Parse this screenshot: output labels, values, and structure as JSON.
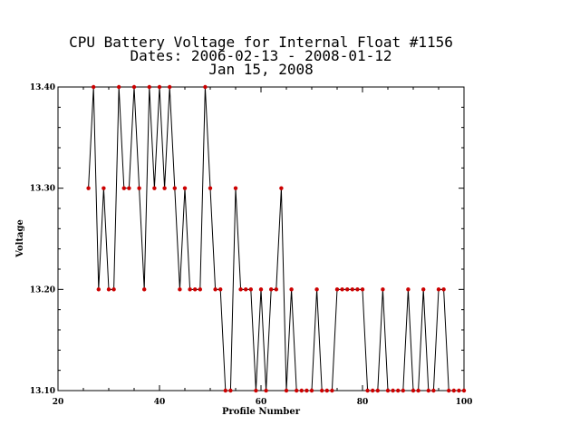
{
  "chart_data": {
    "type": "line",
    "title_lines": [
      "CPU Battery Voltage for Internal Float #1156",
      "Dates:  2006-02-13 -  2008-01-12",
      "Jan 15, 2008"
    ],
    "xlabel": "Profile Number",
    "ylabel": "Voltage",
    "xlim": [
      20,
      100
    ],
    "ylim": [
      13.1,
      13.4
    ],
    "x_ticks": [
      20,
      40,
      60,
      80,
      100
    ],
    "x_tick_labels": [
      "20",
      "40",
      "60",
      "80",
      "100"
    ],
    "y_ticks": [
      13.1,
      13.2,
      13.3,
      13.4
    ],
    "y_tick_labels": [
      "13.10",
      "13.20",
      "13.30",
      "13.40"
    ],
    "grid": false,
    "series": [
      {
        "line_color": "#000000",
        "marker_color": "#cc0000",
        "x": [
          26,
          27,
          28,
          29,
          30,
          31,
          32,
          33,
          34,
          35,
          36,
          37,
          38,
          39,
          40,
          41,
          42,
          43,
          44,
          45,
          46,
          47,
          48,
          49,
          50,
          51,
          52,
          53,
          54,
          55,
          56,
          57,
          58,
          59,
          60,
          61,
          62,
          63,
          64,
          65,
          66,
          67,
          68,
          69,
          70,
          71,
          72,
          73,
          74,
          75,
          76,
          77,
          78,
          79,
          80,
          81,
          82,
          83,
          84,
          85,
          86,
          87,
          88,
          89,
          90,
          91,
          92,
          93,
          94,
          95,
          96,
          97,
          98,
          99,
          100
        ],
        "values": [
          13.3,
          13.4,
          13.2,
          13.3,
          13.2,
          13.2,
          13.4,
          13.3,
          13.3,
          13.4,
          13.3,
          13.2,
          13.4,
          13.3,
          13.4,
          13.3,
          13.4,
          13.3,
          13.2,
          13.3,
          13.2,
          13.2,
          13.2,
          13.4,
          13.3,
          13.2,
          13.2,
          13.1,
          13.1,
          13.3,
          13.2,
          13.2,
          13.2,
          13.1,
          13.2,
          13.1,
          13.2,
          13.2,
          13.3,
          13.1,
          13.2,
          13.1,
          13.1,
          13.1,
          13.1,
          13.2,
          13.1,
          13.1,
          13.1,
          13.2,
          13.2,
          13.2,
          13.2,
          13.2,
          13.2,
          13.1,
          13.1,
          13.1,
          13.2,
          13.1,
          13.1,
          13.1,
          13.1,
          13.2,
          13.1,
          13.1,
          13.2,
          13.1,
          13.1,
          13.2,
          13.2,
          13.1,
          13.1,
          13.1,
          13.1
        ]
      }
    ]
  }
}
